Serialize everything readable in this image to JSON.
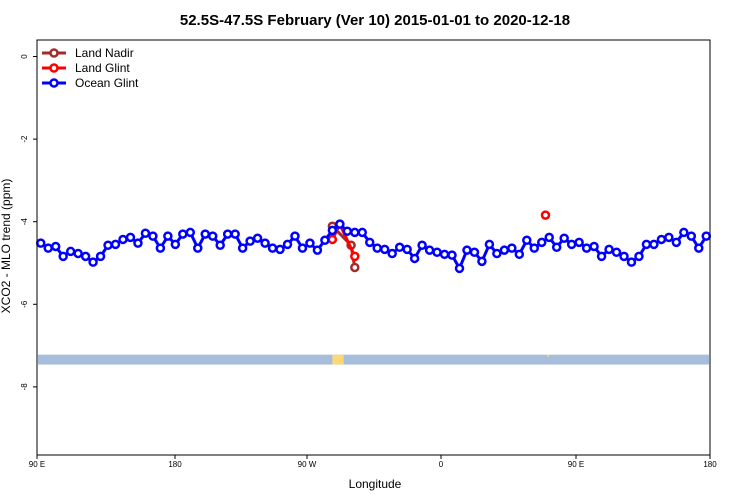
{
  "chart_data": {
    "type": "line",
    "title": "52.5S-47.5S February (Ver 10)   2015-01-01 to 2020-12-18",
    "xlabel": "Longitude",
    "ylabel": "XCO2 - MLO trend (ppm)",
    "xlim": [
      90,
      450
    ],
    "ylim": [
      -9.65,
      0.4
    ],
    "x_ticks": [
      {
        "value": 90,
        "label": "90 E"
      },
      {
        "value": 180,
        "label": "180"
      },
      {
        "value": 270,
        "label": "90 W"
      },
      {
        "value": 360,
        "label": "0"
      },
      {
        "value": 450,
        "label": "90 E"
      },
      {
        "value": 540,
        "label": "180"
      }
    ],
    "y_ticks": [
      {
        "value": 0,
        "label": "0"
      },
      {
        "value": -2,
        "label": "-2"
      },
      {
        "value": -4,
        "label": "-4"
      },
      {
        "value": -6,
        "label": "-6"
      },
      {
        "value": -8,
        "label": "-8"
      }
    ],
    "grid": false,
    "legend_position": "top-left",
    "series": [
      {
        "name": "Land Nadir",
        "color": "#a52a2a",
        "x": [
          248,
          258,
          260
        ],
        "y": [
          -4.11,
          -4.57,
          -5.11
        ]
      },
      {
        "name": "Land Glint",
        "color": "#ff0000",
        "x": [
          248,
          252,
          260,
          362
        ],
        "y": [
          -4.43,
          -4.06,
          -4.84,
          -3.84
        ]
      },
      {
        "name": "Ocean Glint",
        "color": "#0000ff",
        "x_start": 92,
        "x_step": 4,
        "y": [
          -4.52,
          -4.64,
          -4.6,
          -4.84,
          -4.72,
          -4.77,
          -4.84,
          -4.98,
          -4.84,
          -4.57,
          -4.55,
          -4.43,
          -4.38,
          -4.52,
          -4.28,
          -4.35,
          -4.64,
          -4.35,
          -4.55,
          -4.3,
          -4.26,
          -4.64,
          -4.3,
          -4.35,
          -4.57,
          -4.3,
          -4.3,
          -4.64,
          -4.47,
          -4.4,
          -4.52,
          -4.64,
          -4.67,
          -4.55,
          -4.35,
          -4.64,
          -4.52,
          -4.69,
          -4.45,
          -4.21,
          -4.06,
          -4.23,
          -4.26,
          -4.26,
          -4.5,
          -4.64,
          -4.67,
          -4.77,
          -4.62,
          -4.67,
          -4.89,
          -4.57,
          -4.69,
          -4.74,
          -4.79,
          -4.81,
          -5.13,
          -4.69,
          -4.74,
          -4.96,
          -4.55,
          -4.77,
          -4.69,
          -4.64,
          -4.79,
          -4.45,
          -4.64,
          -4.5,
          -4.38,
          -4.62,
          -4.4,
          -4.55,
          -4.5,
          -4.64,
          -4.6,
          -4.84,
          -4.67,
          -4.74,
          -4.84,
          -4.98,
          -4.84,
          -4.55,
          -4.55,
          -4.43,
          -4.38,
          -4.5,
          -4.26,
          -4.35,
          -4.64,
          -4.35
        ]
      }
    ],
    "surface_band": {
      "y_range": [
        -7.46,
        -7.22
      ],
      "ocean_color": "#a6bddb",
      "land_color": "#fdd87a",
      "land_x": [
        [
          248,
          254
        ],
        [
          363,
          364
        ]
      ]
    }
  }
}
